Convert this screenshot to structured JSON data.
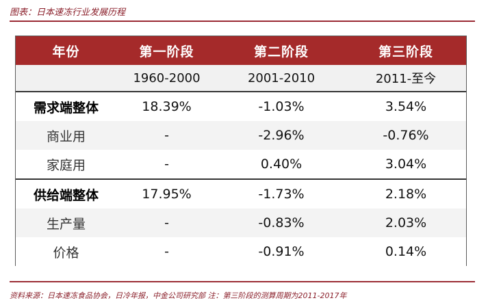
{
  "figure": {
    "title": "图表：日本速冻行业发展历程",
    "source": "资料来源：日本速冻食品协会，日冷年报，中金公司研究部 注：第三阶段的测算周期为2011-2017年"
  },
  "table": {
    "headers": [
      "年份",
      "第一阶段",
      "第二阶段",
      "第三阶段"
    ],
    "periods": [
      "",
      "1960-2000",
      "2001-2010",
      "2011-至今"
    ],
    "rows": [
      {
        "label": "需求端整体",
        "values": [
          "18.39%",
          "-1.03%",
          "3.54%"
        ]
      },
      {
        "label": "商业用",
        "values": [
          "-",
          "-2.96%",
          "-0.76%"
        ]
      },
      {
        "label": "家庭用",
        "values": [
          "-",
          "0.40%",
          "3.04%"
        ]
      },
      {
        "label": "供给端整体",
        "values": [
          "17.95%",
          "-1.73%",
          "2.18%"
        ]
      },
      {
        "label": "生产量",
        "values": [
          "-",
          "-0.83%",
          "2.03%"
        ]
      },
      {
        "label": "价格",
        "values": [
          "-",
          "-0.91%",
          "0.14%"
        ]
      }
    ]
  },
  "colors": {
    "header_bg": "#a52a2a",
    "accent": "#8a1f2a"
  }
}
